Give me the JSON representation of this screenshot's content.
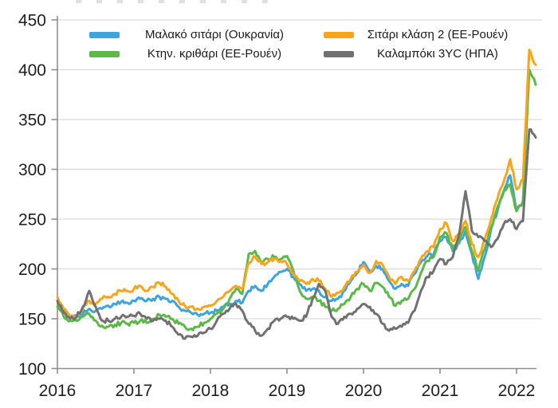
{
  "style": {
    "grid_color": "#d9d9d9",
    "axis_color": "#8f8f8f",
    "text_color": "#1f1f1f",
    "line_width": 3,
    "jitter": 2.2,
    "series_colors": {
      "soft_wheat_ukraine": "#3fa4dc",
      "feed_barley_rouen": "#5cb847",
      "wheat_class2_rouen": "#f7a61b",
      "maize_3yc_usa": "#717171"
    }
  },
  "chart_data": {
    "type": "line",
    "title": "",
    "xlabel": "",
    "ylabel": "",
    "ylim": [
      100,
      450
    ],
    "xlim": [
      2016,
      2022.4
    ],
    "grid": true,
    "legend_position": "top",
    "yticks": [
      100,
      150,
      200,
      250,
      300,
      350,
      400,
      450
    ],
    "xticks": [
      2016,
      2017,
      2018,
      2019,
      2020,
      2021,
      2022
    ],
    "x_start_year": 2016,
    "x_step_months": 1,
    "series": [
      {
        "name": "Μαλακό σιτάρι (Ουκρανία)",
        "color": "#3fa4dc",
        "values": [
          168,
          158,
          152,
          152,
          155,
          160,
          158,
          160,
          163,
          165,
          167,
          166,
          168,
          170,
          168,
          170,
          172,
          170,
          168,
          162,
          158,
          156,
          154,
          155,
          156,
          158,
          162,
          165,
          168,
          166,
          178,
          183,
          178,
          185,
          192,
          197,
          200,
          192,
          185,
          178,
          180,
          178,
          172,
          168,
          170,
          178,
          188,
          196,
          207,
          198,
          203,
          200,
          188,
          180,
          185,
          183,
          195,
          207,
          213,
          215,
          228,
          232,
          218,
          226,
          238,
          215,
          190,
          212,
          240,
          258,
          278,
          294,
          258,
          268
        ]
      },
      {
        "name": "Κτην. κριθάρι (ΕΕ-Ρουέν)",
        "color": "#5cb847",
        "values": [
          162,
          152,
          148,
          148,
          152,
          155,
          148,
          143,
          142,
          144,
          146,
          145,
          146,
          148,
          146,
          150,
          154,
          152,
          150,
          145,
          142,
          140,
          142,
          146,
          150,
          155,
          160,
          170,
          180,
          175,
          215,
          218,
          207,
          210,
          212,
          210,
          213,
          198,
          178,
          170,
          172,
          168,
          162,
          158,
          160,
          165,
          172,
          180,
          185,
          178,
          186,
          182,
          172,
          163,
          168,
          170,
          180,
          196,
          208,
          212,
          232,
          236,
          220,
          228,
          242,
          218,
          198,
          220,
          242,
          262,
          278,
          285,
          258,
          268,
          400,
          385
        ]
      },
      {
        "name": "Σιτάρι κλάση 2 (ΕΕ-Ρουέν)",
        "color": "#f7a61b",
        "values": [
          172,
          160,
          152,
          153,
          160,
          168,
          165,
          170,
          172,
          175,
          178,
          178,
          180,
          183,
          178,
          182,
          186,
          182,
          175,
          168,
          163,
          162,
          160,
          162,
          163,
          168,
          172,
          178,
          183,
          180,
          206,
          212,
          205,
          207,
          210,
          208,
          205,
          195,
          188,
          185,
          190,
          188,
          180,
          172,
          176,
          182,
          190,
          197,
          204,
          196,
          208,
          204,
          192,
          185,
          192,
          188,
          198,
          210,
          218,
          222,
          240,
          246,
          228,
          236,
          248,
          225,
          212,
          230,
          250,
          270,
          288,
          310,
          280,
          290,
          420,
          405
        ]
      },
      {
        "name": "Καλαμπόκι 3YC (ΗΠΑ)",
        "color": "#717171",
        "values": [
          168,
          156,
          150,
          152,
          162,
          178,
          162,
          148,
          148,
          150,
          152,
          152,
          153,
          155,
          150,
          148,
          150,
          148,
          142,
          134,
          130,
          132,
          133,
          136,
          140,
          148,
          155,
          160,
          165,
          158,
          145,
          138,
          133,
          140,
          148,
          150,
          152,
          150,
          148,
          152,
          170,
          185,
          178,
          152,
          145,
          152,
          155,
          160,
          165,
          162,
          155,
          145,
          138,
          140,
          142,
          146,
          158,
          178,
          192,
          198,
          210,
          205,
          212,
          235,
          278,
          238,
          232,
          228,
          222,
          230,
          245,
          250,
          240,
          248,
          340,
          332
        ]
      }
    ]
  },
  "axes": {
    "y_labels": [
      "450",
      "400",
      "350",
      "300",
      "250",
      "200",
      "150",
      "100"
    ],
    "x_labels": [
      "2016",
      "2017",
      "2018",
      "2019",
      "2020",
      "2021",
      "2022"
    ]
  },
  "legend": {
    "row1_col1": "Μαλακό σιτάρι (Ουκρανία)",
    "row1_col2": "Σιτάρι κλάση 2 (ΕΕ-Ρουέν)",
    "row2_col1": "Κτην. κριθάρι (ΕΕ-Ρουέν)",
    "row2_col2": "Καλαμπόκι 3YC (ΗΠΑ)"
  }
}
